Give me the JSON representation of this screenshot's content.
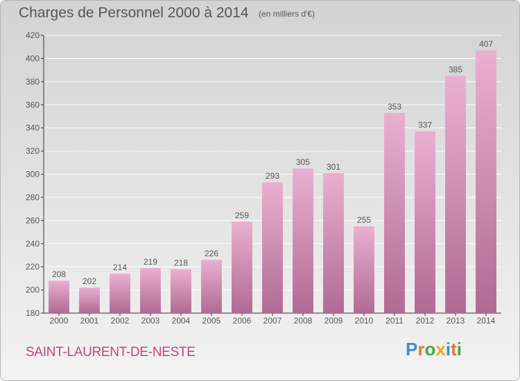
{
  "header": {
    "title": "Charges de Personnel 2000 à 2014",
    "units": "(en milliers d'€)"
  },
  "footer": {
    "commune": "SAINT-LAURENT-DE-NESTE",
    "logo_text": "Proxiti",
    "logo_colors": [
      "#3a8fd0",
      "#e07a26",
      "#4aa64a",
      "#e0b020",
      "#3a8fd0",
      "#e07a26",
      "#4aa64a"
    ]
  },
  "colors": {
    "bar": "#d98ab8",
    "bar_light": "#eab0d0",
    "bar_dark": "#b06a94",
    "text": "#555555",
    "grid": "#ffffff"
  },
  "chart_data": {
    "type": "bar",
    "title": "Charges de Personnel 2000 à 2014",
    "subtitle": "(en milliers d'€)",
    "xlabel": "",
    "ylabel": "",
    "categories": [
      "2000",
      "2001",
      "2002",
      "2003",
      "2004",
      "2005",
      "2006",
      "2007",
      "2008",
      "2009",
      "2010",
      "2011",
      "2012",
      "2013",
      "2014"
    ],
    "values": [
      208,
      202,
      214,
      219,
      218,
      226,
      259,
      293,
      305,
      301,
      255,
      353,
      337,
      385,
      407
    ],
    "ylim": [
      180,
      420
    ],
    "yticks": [
      180,
      200,
      220,
      240,
      260,
      280,
      300,
      320,
      340,
      360,
      380,
      400,
      420
    ],
    "grid": true,
    "data_labels": true
  }
}
